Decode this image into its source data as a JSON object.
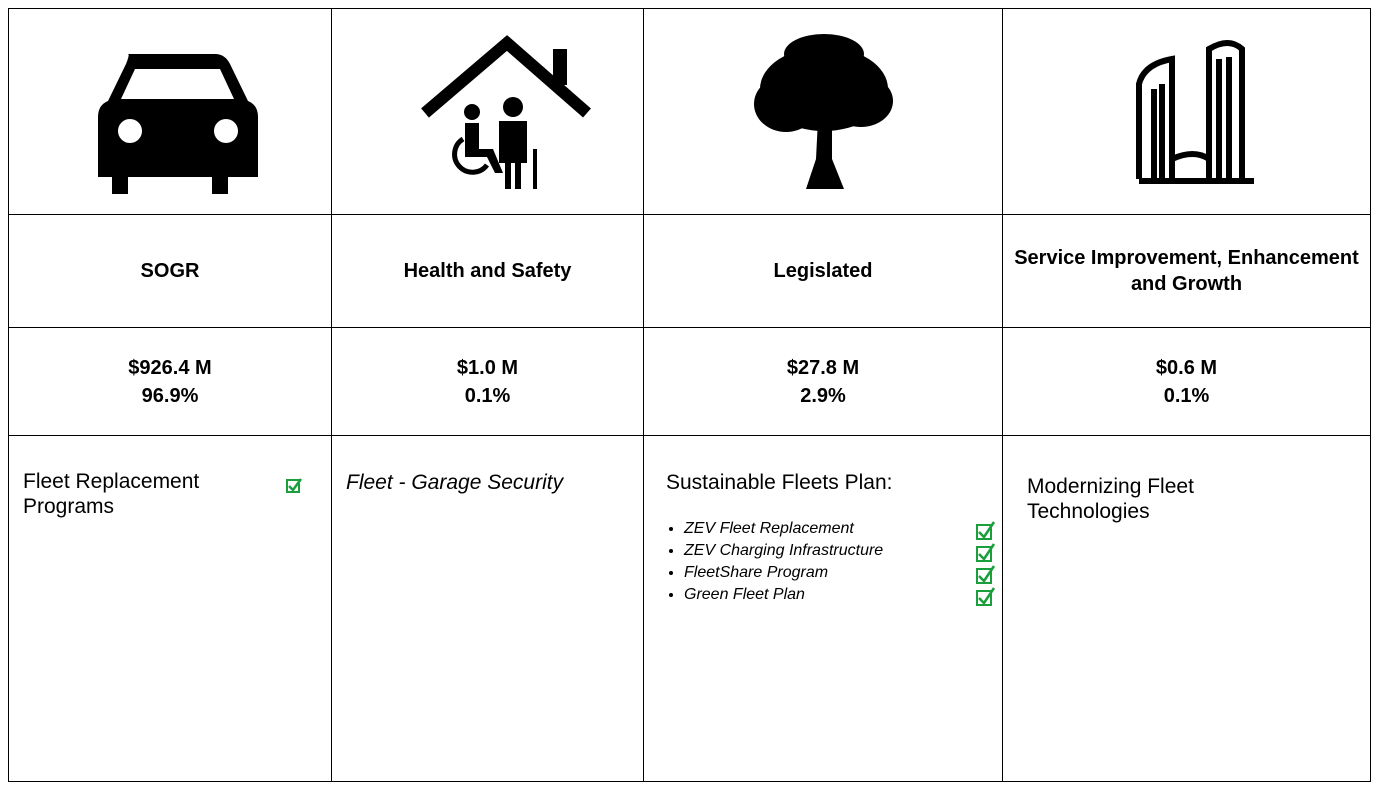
{
  "table": {
    "columns": [
      {
        "category": "SOGR",
        "amount": "$926.4 M",
        "share": "96.9%",
        "description": "Fleet Replacement Programs"
      },
      {
        "category": "Health and Safety",
        "amount": "$1.0 M",
        "share": "0.1%",
        "description": "Fleet - Garage Security"
      },
      {
        "category": "Legislated",
        "amount": "$27.8 M",
        "share": "2.9%",
        "description": "Sustainable Fleets Plan:",
        "items": [
          "ZEV Fleet Replacement",
          "ZEV Charging Infrastructure",
          "FleetShare Program",
          "Green Fleet Plan"
        ]
      },
      {
        "category": "Service Improvement, Enhancement and Growth",
        "amount": "$0.6 M",
        "share": "0.1%",
        "description": "Modernizing Fleet Technologies"
      }
    ]
  }
}
